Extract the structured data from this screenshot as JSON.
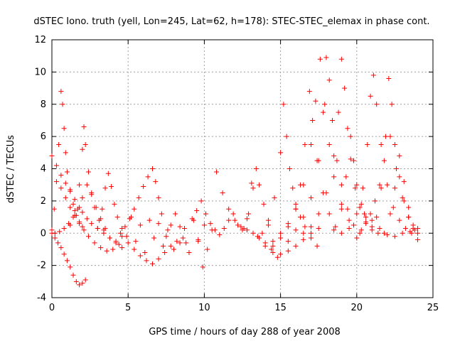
{
  "chart_data": {
    "type": "scatter",
    "title": "dSTEC Iono. truth (yell, Lon=245, Lat=62, h=178): STEC-STEC_elemax in phase cont.",
    "xlabel": "GPS time / hours of day 288 of year 2008",
    "ylabel": "dSTEC  / TECUs",
    "xlim": [
      0,
      25
    ],
    "ylim": [
      -4,
      12
    ],
    "xticks": [
      0,
      5,
      10,
      15,
      20,
      25
    ],
    "yticks": [
      -4,
      -2,
      0,
      2,
      4,
      6,
      8,
      10,
      12
    ],
    "grid": true,
    "marker": "+",
    "color": "#ff0000",
    "series": [
      {
        "x": [
          0.0,
          0.2,
          0.4,
          0.6,
          0.8,
          1.0,
          1.2,
          1.4,
          1.6,
          1.8,
          2.0,
          2.2
        ],
        "y": [
          0.0,
          -0.3,
          -0.6,
          -0.9,
          -1.3,
          -1.7,
          -2.1,
          -2.6,
          -3.0,
          -3.2,
          -3.1,
          -2.9
        ]
      },
      {
        "x": [
          0.0,
          0.3,
          0.6,
          0.9,
          1.2,
          1.5,
          1.8,
          2.0,
          2.3,
          2.6,
          3.0,
          3.4,
          3.8,
          4.2
        ],
        "y": [
          4.8,
          4.2,
          3.6,
          3.1,
          2.6,
          2.1,
          1.6,
          1.3,
          0.9,
          0.6,
          0.3,
          0.0,
          -0.3,
          -0.5
        ]
      },
      {
        "x": [
          0.0,
          0.15,
          0.3,
          0.45,
          0.6,
          0.7,
          0.8,
          0.9,
          1.0,
          1.2,
          1.4,
          1.6,
          1.8,
          2.0
        ],
        "y": [
          0.2,
          1.5,
          3.2,
          5.5,
          8.8,
          8.0,
          6.5,
          5.0,
          3.8,
          2.7,
          1.8,
          1.1,
          0.7,
          0.4
        ]
      },
      {
        "x": [
          0.2,
          0.5,
          0.8,
          1.1,
          1.4,
          1.7,
          2.0,
          2.3,
          2.6,
          2.9,
          3.2,
          3.5
        ],
        "y": [
          0.0,
          0.1,
          0.3,
          0.6,
          1.0,
          1.5,
          2.2,
          3.0,
          2.4,
          1.6,
          0.9,
          0.3
        ]
      },
      {
        "x": [
          1.2,
          1.5,
          1.8,
          2.0,
          2.1,
          2.2,
          2.4,
          2.6,
          2.8,
          3.1,
          3.4,
          3.8,
          4.2,
          4.6
        ],
        "y": [
          0.5,
          1.4,
          3.0,
          5.2,
          6.6,
          5.5,
          3.8,
          2.5,
          1.6,
          0.8,
          0.2,
          -0.3,
          -0.6,
          -0.9
        ]
      },
      {
        "x": [
          0.6,
          0.9,
          1.2,
          1.5,
          1.8,
          2.1,
          2.4,
          2.8,
          3.2,
          3.6,
          4.0,
          4.4
        ],
        "y": [
          2.8,
          2.2,
          1.6,
          1.1,
          0.6,
          0.2,
          -0.2,
          -0.6,
          -0.9,
          -1.1,
          -1.0,
          -0.7
        ]
      },
      {
        "x": [
          3.0,
          3.3,
          3.5,
          3.7,
          3.9,
          4.1,
          4.3,
          4.6,
          4.9
        ],
        "y": [
          0.3,
          1.5,
          2.8,
          3.7,
          2.9,
          1.8,
          1.0,
          0.3,
          -0.2
        ]
      },
      {
        "x": [
          4.5,
          4.8,
          5.1,
          5.4,
          5.7,
          6.0,
          6.3,
          6.6,
          6.8,
          7.0,
          7.2
        ],
        "y": [
          0.0,
          0.4,
          0.9,
          1.5,
          2.2,
          2.9,
          3.5,
          4.0,
          3.2,
          2.2,
          1.2
        ]
      },
      {
        "x": [
          4.6,
          5.0,
          5.4,
          5.8,
          6.2,
          6.6,
          7.0,
          7.4,
          7.8,
          8.2,
          8.6
        ],
        "y": [
          -0.2,
          -0.6,
          -1.0,
          -1.4,
          -1.7,
          -1.9,
          -1.6,
          -1.2,
          -0.8,
          -0.5,
          -0.3
        ]
      },
      {
        "x": [
          5.2,
          5.5,
          5.8,
          6.1,
          6.4,
          6.7,
          7.0,
          7.3,
          7.6,
          8.0,
          8.4,
          8.8,
          9.2,
          9.6,
          10.0
        ],
        "y": [
          1.0,
          -0.5,
          0.5,
          -1.2,
          0.8,
          -0.3,
          0.6,
          -0.8,
          0.2,
          -1.0,
          0.4,
          -0.6,
          0.9,
          -0.4,
          0.5
        ]
      },
      {
        "x": [
          7.5,
          7.8,
          8.1,
          8.4,
          8.7,
          9.0,
          9.3,
          9.6,
          9.9,
          10.2,
          10.5
        ],
        "y": [
          -0.2,
          0.5,
          1.2,
          -0.6,
          0.3,
          -1.2,
          0.8,
          -0.5,
          -2.1,
          -1.0,
          0.2
        ]
      },
      {
        "x": [
          9.5,
          9.8,
          10.1,
          10.4,
          10.7,
          11.0,
          11.3,
          11.6,
          11.9,
          12.2,
          12.5,
          12.8,
          13.1
        ],
        "y": [
          1.4,
          2.0,
          1.2,
          0.6,
          0.2,
          -0.1,
          0.3,
          0.8,
          1.2,
          0.5,
          0.2,
          0.9,
          3.1
        ]
      },
      {
        "x": [
          10.8,
          11.2,
          11.6,
          12.0,
          12.4,
          12.8,
          13.2,
          13.6,
          14.0,
          14.4
        ],
        "y": [
          3.8,
          2.5,
          1.5,
          0.8,
          0.4,
          0.2,
          0.0,
          -0.3,
          -0.6,
          -1.0
        ]
      },
      {
        "x": [
          12.6,
          12.9,
          13.2,
          13.4,
          13.6,
          13.9,
          14.2,
          14.5,
          14.8
        ],
        "y": [
          0.3,
          1.2,
          2.8,
          4.0,
          3.0,
          1.8,
          0.5,
          -0.5,
          -1.5
        ]
      },
      {
        "x": [
          13.5,
          14.0,
          14.5,
          15.0,
          15.5,
          16.0,
          16.5,
          17.0,
          17.5
        ],
        "y": [
          -0.2,
          -0.8,
          -1.2,
          -1.3,
          -1.1,
          -0.8,
          -0.4,
          0.0,
          0.3
        ]
      },
      {
        "x": [
          13.8,
          14.2,
          14.6,
          15.0,
          15.2,
          15.4,
          15.6,
          15.8,
          16.0,
          16.3,
          16.6,
          17.0,
          17.4
        ],
        "y": [
          0.0,
          0.8,
          2.2,
          5.0,
          8.0,
          6.0,
          4.0,
          2.8,
          1.8,
          1.0,
          0.4,
          -0.3,
          -0.8
        ]
      },
      {
        "x": [
          14.5,
          15.0,
          15.5,
          16.0,
          16.3,
          16.6,
          16.9,
          17.1,
          17.4,
          17.8,
          18.2,
          18.6
        ],
        "y": [
          -0.8,
          -0.3,
          0.4,
          1.5,
          3.0,
          5.5,
          8.8,
          7.0,
          4.5,
          2.5,
          1.2,
          0.4
        ]
      },
      {
        "x": [
          15.0,
          15.5,
          16.0,
          16.5,
          17.0,
          17.3,
          17.6,
          17.9,
          18.2,
          18.5,
          19.0,
          19.5
        ],
        "y": [
          0.0,
          0.6,
          1.5,
          3.0,
          5.5,
          8.2,
          10.8,
          8.0,
          5.5,
          3.5,
          1.8,
          0.8
        ]
      },
      {
        "x": [
          15.5,
          16.0,
          16.5,
          17.0,
          17.5,
          17.8,
          18.0,
          18.2,
          18.4,
          18.7,
          19.0,
          19.4,
          19.8,
          20.2
        ],
        "y": [
          -0.5,
          0.2,
          1.0,
          2.2,
          4.5,
          7.5,
          10.9,
          9.5,
          7.0,
          4.5,
          3.0,
          1.5,
          0.5,
          0.0
        ]
      },
      {
        "x": [
          16.5,
          17.0,
          17.5,
          18.0,
          18.5,
          18.8,
          19.0,
          19.2,
          19.4,
          19.6,
          19.9,
          20.2,
          20.6,
          21.0
        ],
        "y": [
          0.0,
          0.4,
          1.2,
          2.5,
          4.8,
          7.5,
          10.8,
          9.0,
          6.5,
          4.6,
          2.8,
          1.6,
          0.7,
          0.2
        ]
      },
      {
        "x": [
          18.5,
          19.0,
          19.3,
          19.6,
          19.8,
          20.0,
          20.3,
          20.6,
          21.0,
          21.4
        ],
        "y": [
          0.2,
          1.5,
          3.5,
          6.0,
          4.5,
          3.0,
          1.8,
          1.0,
          0.4,
          0.0
        ]
      },
      {
        "x": [
          19.0,
          19.5,
          20.0,
          20.4,
          20.7,
          20.9,
          21.1,
          21.3,
          21.6,
          22.0,
          22.4,
          22.8,
          23.2,
          23.6
        ],
        "y": [
          0.0,
          0.3,
          1.2,
          2.8,
          5.5,
          8.5,
          9.8,
          8.0,
          5.5,
          3.0,
          1.6,
          0.8,
          0.3,
          0.0
        ]
      },
      {
        "x": [
          20.0,
          20.3,
          20.6,
          20.9,
          21.2,
          21.5,
          21.8,
          22.2,
          22.6,
          23.0,
          23.4,
          23.8
        ],
        "y": [
          -0.3,
          0.2,
          0.6,
          1.2,
          2.0,
          3.0,
          4.5,
          6.0,
          4.0,
          2.2,
          1.0,
          0.2
        ]
      },
      {
        "x": [
          21.3,
          21.6,
          21.9,
          22.1,
          22.3,
          22.5,
          22.8,
          23.1,
          23.4,
          23.7,
          24.0
        ],
        "y": [
          1.0,
          2.8,
          6.0,
          9.6,
          8.0,
          5.5,
          3.5,
          2.0,
          1.0,
          0.3,
          -0.4
        ]
      },
      {
        "x": [
          21.8,
          22.2,
          22.5,
          22.8,
          23.1,
          23.4,
          23.7,
          24.0
        ],
        "y": [
          0.0,
          1.2,
          2.8,
          4.8,
          3.2,
          1.6,
          0.5,
          0.0
        ]
      },
      {
        "x": [
          20.5,
          21.0,
          21.5,
          22.0,
          22.5,
          23.0,
          23.5,
          24.0
        ],
        "y": [
          1.2,
          0.8,
          0.3,
          -0.1,
          -0.2,
          0.0,
          0.1,
          0.3
        ]
      }
    ]
  }
}
